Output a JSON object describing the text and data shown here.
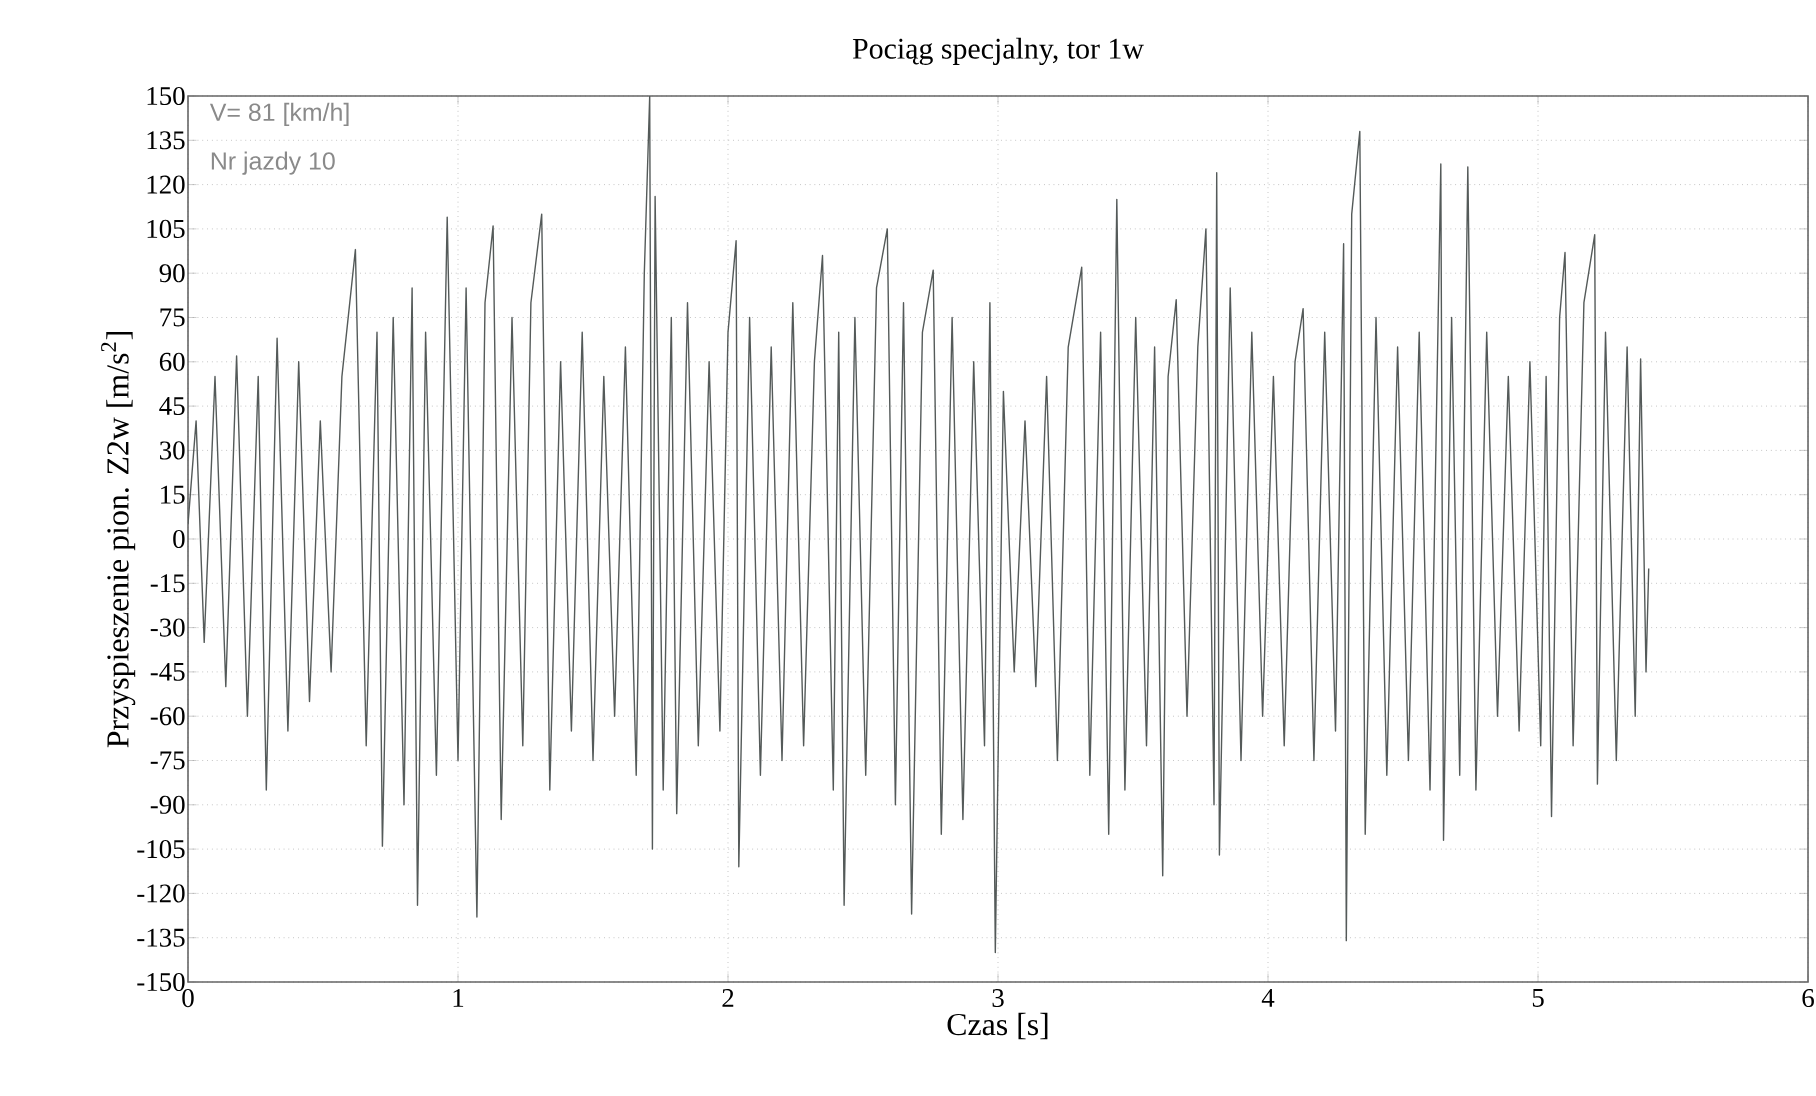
{
  "chart_data": {
    "type": "line",
    "title": "Pociąg specjalny, tor 1w",
    "xlabel": "Czas [s]",
    "ylabel": "Przyspieszenie pion. Z2w [m/s$^{2}$]",
    "annotations": [
      "V= 81 [km/h]",
      "Nr jazdy 10"
    ],
    "xlim": [
      0,
      6
    ],
    "xticks": [
      0,
      1,
      2,
      3,
      4,
      5,
      6
    ],
    "ylim": [
      -150,
      150
    ],
    "yticks": [
      -150,
      -135,
      -120,
      -105,
      -90,
      -75,
      -60,
      -45,
      -30,
      -15,
      0,
      15,
      30,
      45,
      60,
      75,
      90,
      105,
      120,
      135,
      150
    ],
    "grid": true,
    "color": "#545a59",
    "line_style": "solid",
    "x": [
      0,
      0.03,
      0.06,
      0.1,
      0.14,
      0.18,
      0.22,
      0.26,
      0.29,
      0.33,
      0.37,
      0.41,
      0.45,
      0.49,
      0.53,
      0.57,
      0.62,
      0.66,
      0.7,
      0.72,
      0.76,
      0.8,
      0.83,
      0.85,
      0.88,
      0.92,
      0.96,
      1.0,
      1.03,
      1.07,
      1.1,
      1.13,
      1.16,
      1.2,
      1.24,
      1.27,
      1.31,
      1.34,
      1.38,
      1.42,
      1.46,
      1.5,
      1.54,
      1.58,
      1.62,
      1.66,
      1.69,
      1.71,
      1.72,
      1.73,
      1.76,
      1.79,
      1.81,
      1.85,
      1.89,
      1.93,
      1.97,
      2.0,
      2.03,
      2.04,
      2.08,
      2.12,
      2.16,
      2.2,
      2.24,
      2.28,
      2.32,
      2.35,
      2.39,
      2.41,
      2.43,
      2.47,
      2.51,
      2.55,
      2.59,
      2.62,
      2.65,
      2.68,
      2.72,
      2.76,
      2.79,
      2.83,
      2.87,
      2.91,
      2.95,
      2.97,
      2.99,
      3.02,
      3.06,
      3.1,
      3.14,
      3.18,
      3.22,
      3.26,
      3.31,
      3.34,
      3.38,
      3.41,
      3.44,
      3.47,
      3.51,
      3.55,
      3.58,
      3.61,
      3.63,
      3.66,
      3.7,
      3.74,
      3.77,
      3.8,
      3.81,
      3.82,
      3.86,
      3.9,
      3.94,
      3.98,
      4.02,
      4.06,
      4.1,
      4.13,
      4.17,
      4.21,
      4.25,
      4.28,
      4.29,
      4.31,
      4.34,
      4.36,
      4.4,
      4.44,
      4.48,
      4.52,
      4.56,
      4.6,
      4.64,
      4.65,
      4.68,
      4.71,
      4.74,
      4.77,
      4.81,
      4.85,
      4.89,
      4.93,
      4.97,
      5.01,
      5.03,
      5.05,
      5.08,
      5.1,
      5.13,
      5.17,
      5.21,
      5.22,
      5.25,
      5.29,
      5.33,
      5.36,
      5.38,
      5.4,
      5.41
    ],
    "values": [
      5,
      40,
      -35,
      55,
      -50,
      62,
      -60,
      55,
      -85,
      68,
      -65,
      60,
      -55,
      40,
      -45,
      55,
      98,
      -70,
      70,
      -104,
      75,
      -90,
      85,
      -124,
      70,
      -80,
      109,
      -75,
      85,
      -128,
      80,
      106,
      -95,
      75,
      -70,
      80,
      110,
      -85,
      60,
      -65,
      70,
      -75,
      55,
      -60,
      65,
      -80,
      90,
      150,
      -105,
      116,
      -85,
      75,
      -93,
      80,
      -70,
      60,
      -65,
      70,
      101,
      -111,
      75,
      -80,
      65,
      -75,
      80,
      -70,
      60,
      96,
      -85,
      70,
      -124,
      75,
      -80,
      85,
      105,
      -90,
      80,
      -127,
      70,
      91,
      -100,
      75,
      -95,
      60,
      -70,
      80,
      -140,
      50,
      -45,
      40,
      -50,
      55,
      -75,
      65,
      92,
      -80,
      70,
      -100,
      115,
      -85,
      75,
      -70,
      65,
      -114,
      55,
      81,
      -60,
      65,
      105,
      -90,
      124,
      -107,
      85,
      -75,
      70,
      -60,
      55,
      -70,
      60,
      78,
      -75,
      70,
      -65,
      100,
      -136,
      110,
      138,
      -100,
      75,
      -80,
      65,
      -75,
      70,
      -85,
      127,
      -102,
      75,
      -80,
      126,
      -85,
      70,
      -60,
      55,
      -65,
      60,
      -70,
      55,
      -94,
      75,
      97,
      -70,
      80,
      103,
      -83,
      70,
      -75,
      65,
      -60,
      61,
      -45,
      -10
    ]
  }
}
